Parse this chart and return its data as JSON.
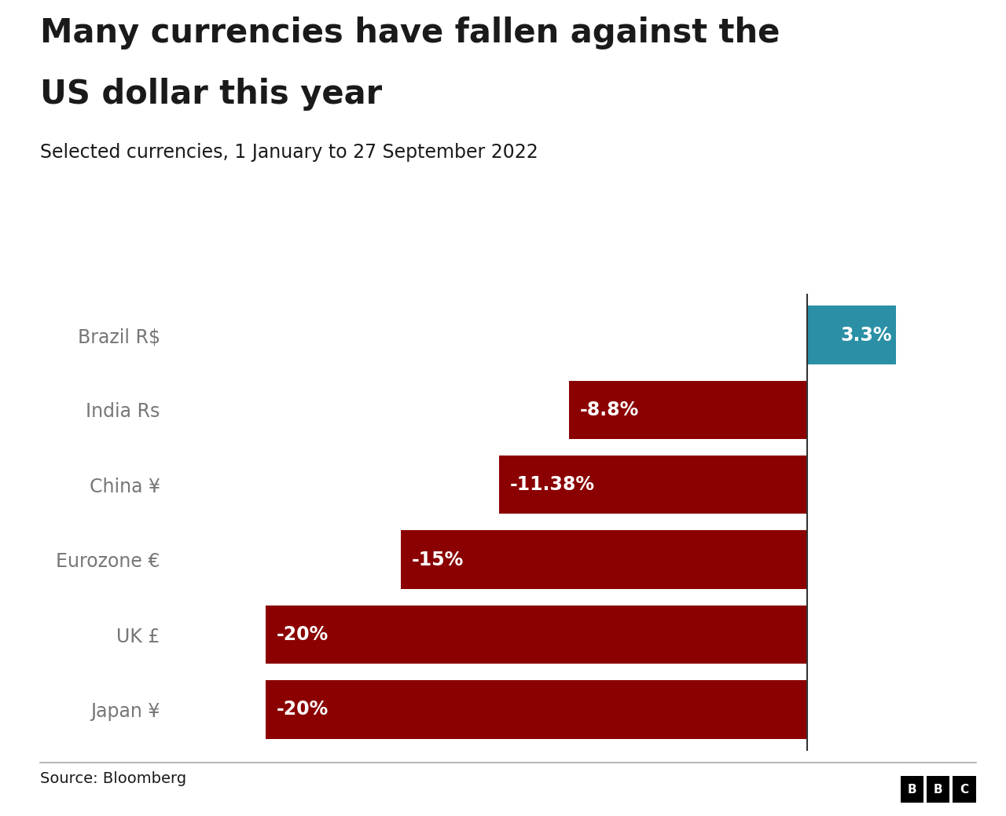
{
  "title_line1": "Many currencies have fallen against the",
  "title_line2": "US dollar this year",
  "subtitle": "Selected currencies, 1 January to 27 September 2022",
  "source": "Source: Bloomberg",
  "categories": [
    "Brazil R$",
    "India Rs",
    "China ¥",
    "Eurozone €",
    "UK £",
    "Japan ¥"
  ],
  "values": [
    3.3,
    -8.8,
    -11.38,
    -15.0,
    -20.0,
    -20.0
  ],
  "labels": [
    "3.3%",
    "-8.8%",
    "-11.38%",
    "-15%",
    "-20%",
    "-20%"
  ],
  "bar_color_positive": "#2b8fa5",
  "bar_color_negative": "#8b0000",
  "background_color": "#ffffff",
  "text_color_dark": "#1a1a1a",
  "text_color_gray": "#777777",
  "label_color_white": "#ffffff",
  "xlim": [
    -23.5,
    5.5
  ],
  "bar_height": 0.78,
  "figsize": [
    12.8,
    10.39
  ],
  "dpi": 100,
  "title_fontsize": 30,
  "subtitle_fontsize": 17,
  "label_fontsize": 17,
  "ytick_fontsize": 17
}
